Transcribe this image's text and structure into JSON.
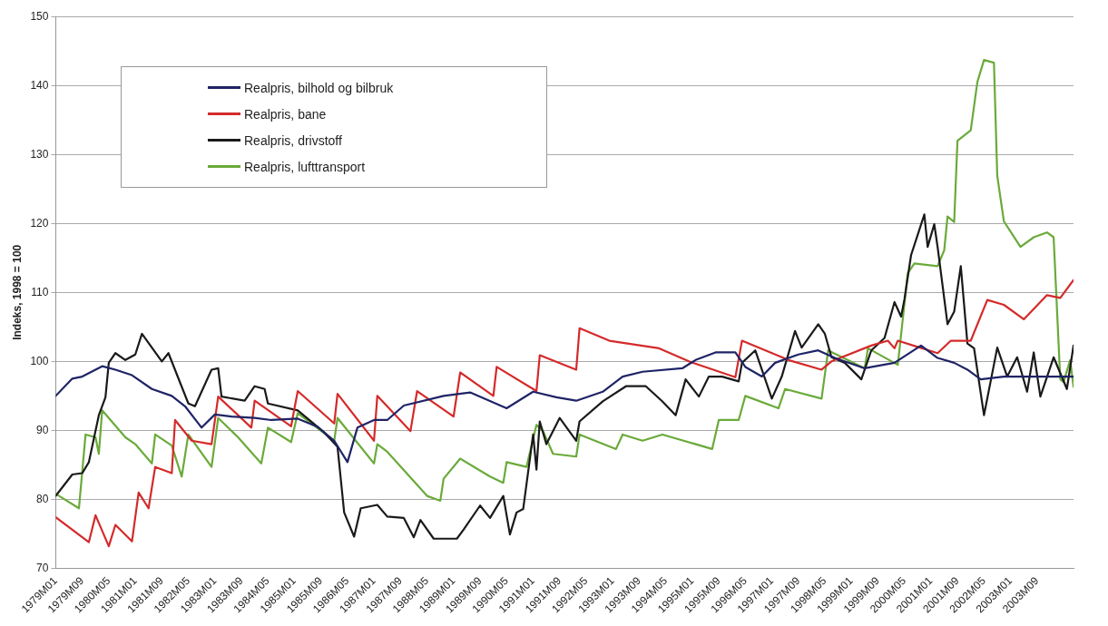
{
  "chart_data": {
    "type": "line",
    "ylabel": "Indeks, 1998 = 100",
    "ylim": [
      70,
      150
    ],
    "yticks": [
      70,
      80,
      90,
      100,
      110,
      120,
      130,
      140,
      150
    ],
    "xlim": [
      "1979-01",
      "2004-08"
    ],
    "xticks": [
      {
        "value": "1979-01",
        "label": "1979M01"
      },
      {
        "value": "1979-09",
        "label": "1979M09"
      },
      {
        "value": "1980-05",
        "label": "1980M05"
      },
      {
        "value": "1981-01",
        "label": "1981M01"
      },
      {
        "value": "1981-09",
        "label": "1981M09"
      },
      {
        "value": "1982-05",
        "label": "1982M05"
      },
      {
        "value": "1983-01",
        "label": "1983M01"
      },
      {
        "value": "1983-09",
        "label": "1983M09"
      },
      {
        "value": "1984-05",
        "label": "1984M05"
      },
      {
        "value": "1985-01",
        "label": "1985M01"
      },
      {
        "value": "1985-09",
        "label": "1985M09"
      },
      {
        "value": "1986-05",
        "label": "1986M05"
      },
      {
        "value": "1987-01",
        "label": "1987M01"
      },
      {
        "value": "1987-09",
        "label": "1987M09"
      },
      {
        "value": "1988-05",
        "label": "1988M05"
      },
      {
        "value": "1989-01",
        "label": "1989M01"
      },
      {
        "value": "1989-09",
        "label": "1989M09"
      },
      {
        "value": "1990-05",
        "label": "1990M05"
      },
      {
        "value": "1991-01",
        "label": "1991M01"
      },
      {
        "value": "1991-09",
        "label": "1991M09"
      },
      {
        "value": "1992-05",
        "label": "1992M05"
      },
      {
        "value": "1993-01",
        "label": "1993M01"
      },
      {
        "value": "1993-09",
        "label": "1993M09"
      },
      {
        "value": "1994-05",
        "label": "1994M05"
      },
      {
        "value": "1995-01",
        "label": "1995M01"
      },
      {
        "value": "1995-09",
        "label": "1995M09"
      },
      {
        "value": "1996-05",
        "label": "1996M05"
      },
      {
        "value": "1997-01",
        "label": "1997M01"
      },
      {
        "value": "1997-09",
        "label": "1997M09"
      },
      {
        "value": "1998-05",
        "label": "1998M05"
      },
      {
        "value": "1999-01",
        "label": "1999M01"
      },
      {
        "value": "1999-09",
        "label": "1999M09"
      },
      {
        "value": "2000-05",
        "label": "2000M05"
      },
      {
        "value": "2001-01",
        "label": "2001M01"
      },
      {
        "value": "2001-09",
        "label": "2001M09"
      },
      {
        "value": "2002-05",
        "label": "2002M05"
      },
      {
        "value": "2003-01",
        "label": "2003M01"
      },
      {
        "value": "2003-09",
        "label": "2003M09"
      }
    ],
    "grid": "y",
    "legend": "top left",
    "marker": "none",
    "line_style": "solid",
    "series": [
      {
        "name": "Realpris, bilhold og bilbruk",
        "color": "#1f2466",
        "x": [
          "1979-01",
          "1979-06",
          "1979-09",
          "1980-03",
          "1980-07",
          "1980-12",
          "1981-06",
          "1981-12",
          "1982-04",
          "1982-09",
          "1983-01",
          "1983-06",
          "1984-01",
          "1984-06",
          "1985-02",
          "1985-08",
          "1986-01",
          "1986-05",
          "1986-08",
          "1987-01",
          "1987-05",
          "1987-10",
          "1988-10",
          "1989-06",
          "1990-05",
          "1991-01",
          "1991-08",
          "1992-02",
          "1992-10",
          "1993-04",
          "1993-10",
          "1994-10",
          "1995-02",
          "1995-08",
          "1996-02",
          "1996-05",
          "1996-10",
          "1997-02",
          "1997-09",
          "1998-03",
          "1998-08",
          "1999-05",
          "2000-02",
          "2000-10",
          "2001-03",
          "2001-08",
          "2001-12",
          "2002-04",
          "2002-11",
          "2003-08",
          "2004-08"
        ],
        "values": [
          95,
          97.5,
          97.8,
          99.3,
          98.8,
          98,
          96,
          95,
          93.5,
          90.4,
          92.3,
          92,
          91.8,
          91.5,
          91.7,
          90.5,
          88.5,
          85.4,
          90.4,
          91.5,
          91.5,
          93.6,
          95,
          95.5,
          93.2,
          95.6,
          94.8,
          94.3,
          95.6,
          97.8,
          98.5,
          99,
          100.2,
          101.3,
          101.3,
          99.2,
          97.8,
          99.8,
          101,
          101.6,
          100.5,
          99,
          99.8,
          102.3,
          100.5,
          99.8,
          98.8,
          97.4,
          97.8,
          97.8,
          97.8
        ]
      },
      {
        "name": "Realpris, bane",
        "color": "#d42a2a",
        "x": [
          "1979-01",
          "1979-11",
          "1980-01",
          "1980-05",
          "1980-07",
          "1980-12",
          "1981-02",
          "1981-05",
          "1981-07",
          "1981-12",
          "1982-01",
          "1982-06",
          "1982-12",
          "1983-02",
          "1983-12",
          "1984-01",
          "1984-12",
          "1985-02",
          "1986-01",
          "1986-02",
          "1987-01",
          "1987-02",
          "1987-12",
          "1988-02",
          "1989-01",
          "1989-03",
          "1990-01",
          "1990-02",
          "1991-02",
          "1991-03",
          "1992-02",
          "1992-03",
          "1992-12",
          "1994-03",
          "1994-12",
          "1996-02",
          "1996-04",
          "1997-06",
          "1998-04",
          "1998-07",
          "1999-07",
          "1999-12",
          "2000-02",
          "2000-03",
          "2001-03",
          "2001-07",
          "2002-01",
          "2002-06",
          "2002-11",
          "2003-05",
          "2003-12",
          "2004-04",
          "2004-08"
        ],
        "values": [
          77.4,
          73.8,
          77.7,
          73.2,
          76.3,
          73.9,
          81,
          78.7,
          84.7,
          83.8,
          91.5,
          88.5,
          88,
          94.9,
          90.4,
          94.3,
          90.6,
          95.7,
          91,
          95.3,
          88.5,
          95,
          89.9,
          95.7,
          92,
          98.4,
          95,
          99.2,
          95.7,
          100.9,
          98.8,
          104.8,
          103,
          101.9,
          100,
          97.7,
          103,
          100.2,
          98.8,
          100,
          102.3,
          103,
          101.9,
          103,
          101.2,
          103,
          103,
          108.9,
          108.2,
          106.1,
          109.6,
          109.2,
          111.8
        ]
      },
      {
        "name": "Realpris, drivstoff",
        "color": "#1a1a1a",
        "x": [
          "1979-01",
          "1979-06",
          "1979-09",
          "1979-11",
          "1980-02",
          "1980-04",
          "1980-05",
          "1980-07",
          "1980-10",
          "1981-01",
          "1981-03",
          "1981-09",
          "1981-11",
          "1982-05",
          "1982-07",
          "1982-12",
          "1983-02",
          "1983-03",
          "1983-10",
          "1984-01",
          "1984-04",
          "1984-05",
          "1985-02",
          "1985-10",
          "1986-02",
          "1986-04",
          "1986-07",
          "1986-09",
          "1987-02",
          "1987-05",
          "1987-10",
          "1988-01",
          "1988-03",
          "1988-07",
          "1989-02",
          "1989-04",
          "1989-09",
          "1989-12",
          "1990-04",
          "1990-06",
          "1990-08",
          "1990-10",
          "1991-01",
          "1991-02",
          "1991-03",
          "1991-05",
          "1991-09",
          "1992-02",
          "1992-03",
          "1992-10",
          "1993-05",
          "1993-11",
          "1994-04",
          "1994-08",
          "1994-11",
          "1995-03",
          "1995-06",
          "1995-10",
          "1996-03",
          "1996-04",
          "1996-08",
          "1997-01",
          "1997-04",
          "1997-08",
          "1997-10",
          "1998-03",
          "1998-05",
          "1998-07",
          "1998-11",
          "1999-04",
          "1999-07",
          "1999-11",
          "2000-02",
          "2000-04",
          "2000-05",
          "2000-07",
          "2000-11",
          "2000-12",
          "2001-02",
          "2001-03",
          "2001-06",
          "2001-08",
          "2001-10",
          "2001-12",
          "2002-02",
          "2002-05",
          "2002-09",
          "2002-12",
          "2003-03",
          "2003-06",
          "2003-08",
          "2003-10",
          "2004-02",
          "2004-06",
          "2004-08"
        ],
        "values": [
          80.5,
          83.6,
          83.8,
          85.4,
          92.2,
          94.8,
          99.8,
          101.2,
          100.2,
          101,
          104,
          100,
          101.2,
          93.9,
          93.5,
          98.8,
          99,
          94.9,
          94.3,
          96.4,
          96,
          93.9,
          92.9,
          89.7,
          87.6,
          78.1,
          74.6,
          78.7,
          79.2,
          77.5,
          77.3,
          74.5,
          77,
          74.3,
          74.3,
          75.6,
          79.1,
          77.3,
          80.5,
          74.9,
          78.1,
          78.6,
          89.4,
          84.3,
          91.3,
          88,
          91.8,
          88.5,
          91.3,
          94.2,
          96.4,
          96.4,
          94.2,
          92.2,
          97.4,
          94.9,
          97.8,
          97.8,
          97.1,
          99.8,
          101.6,
          94.6,
          97.8,
          104.4,
          102,
          105.4,
          104,
          100.6,
          99.8,
          97.4,
          101.6,
          103.4,
          108.6,
          106.5,
          109,
          115.4,
          121.3,
          116.6,
          119.9,
          116.6,
          105.4,
          107.2,
          113.8,
          102.6,
          101.9,
          92.2,
          102,
          97.8,
          100.6,
          95.6,
          101.3,
          94.9,
          100.6,
          96,
          102.3
        ]
      },
      {
        "name": "Realpris, lufttransport",
        "color": "#6aaa3a",
        "x": [
          "1979-01",
          "1979-08",
          "1979-10",
          "1980-01",
          "1980-02",
          "1980-03",
          "1980-10",
          "1981-01",
          "1981-06",
          "1981-07",
          "1981-12",
          "1982-03",
          "1982-05",
          "1982-12",
          "1983-02",
          "1983-08",
          "1984-03",
          "1984-05",
          "1984-12",
          "1985-02",
          "1986-01",
          "1986-02",
          "1987-01",
          "1987-02",
          "1987-05",
          "1988-05",
          "1988-09",
          "1988-10",
          "1989-03",
          "1989-12",
          "1990-04",
          "1990-05",
          "1990-11",
          "1991-02",
          "1991-04",
          "1991-07",
          "1992-02",
          "1992-03",
          "1993-02",
          "1993-04",
          "1993-10",
          "1994-04",
          "1995-07",
          "1995-09",
          "1996-03",
          "1996-05",
          "1997-03",
          "1997-05",
          "1998-04",
          "1998-06",
          "1999-05",
          "1999-06",
          "2000-03",
          "2000-06",
          "2000-08",
          "2001-03",
          "2001-05",
          "2001-06",
          "2001-08",
          "2001-09",
          "2002-01",
          "2002-03",
          "2002-05",
          "2002-08",
          "2002-09",
          "2002-11",
          "2003-04",
          "2003-08",
          "2003-12",
          "2004-02",
          "2004-04",
          "2004-05",
          "2004-07",
          "2004-08"
        ],
        "values": [
          80.8,
          78.7,
          89.4,
          89,
          86.6,
          92.9,
          89,
          88,
          85.2,
          89.4,
          87.8,
          83.3,
          89.4,
          84.7,
          91.8,
          89,
          85.2,
          90.4,
          88.3,
          92.5,
          88.5,
          91.8,
          85.2,
          88,
          86.9,
          80.5,
          79.8,
          83,
          85.9,
          83.3,
          82.4,
          85.4,
          84.7,
          90.8,
          89.9,
          86.6,
          86.2,
          89.4,
          87.3,
          89.4,
          88.5,
          89.4,
          87.3,
          91.5,
          91.5,
          95,
          93.2,
          96,
          94.6,
          101.6,
          99,
          101.9,
          99.5,
          112.8,
          114.2,
          113.8,
          116.1,
          121,
          120.2,
          132,
          133.5,
          140.5,
          143.7,
          143.3,
          126.9,
          120.3,
          116.6,
          118,
          118.7,
          118,
          97.4,
          97,
          100.2,
          96.3
        ]
      }
    ]
  }
}
